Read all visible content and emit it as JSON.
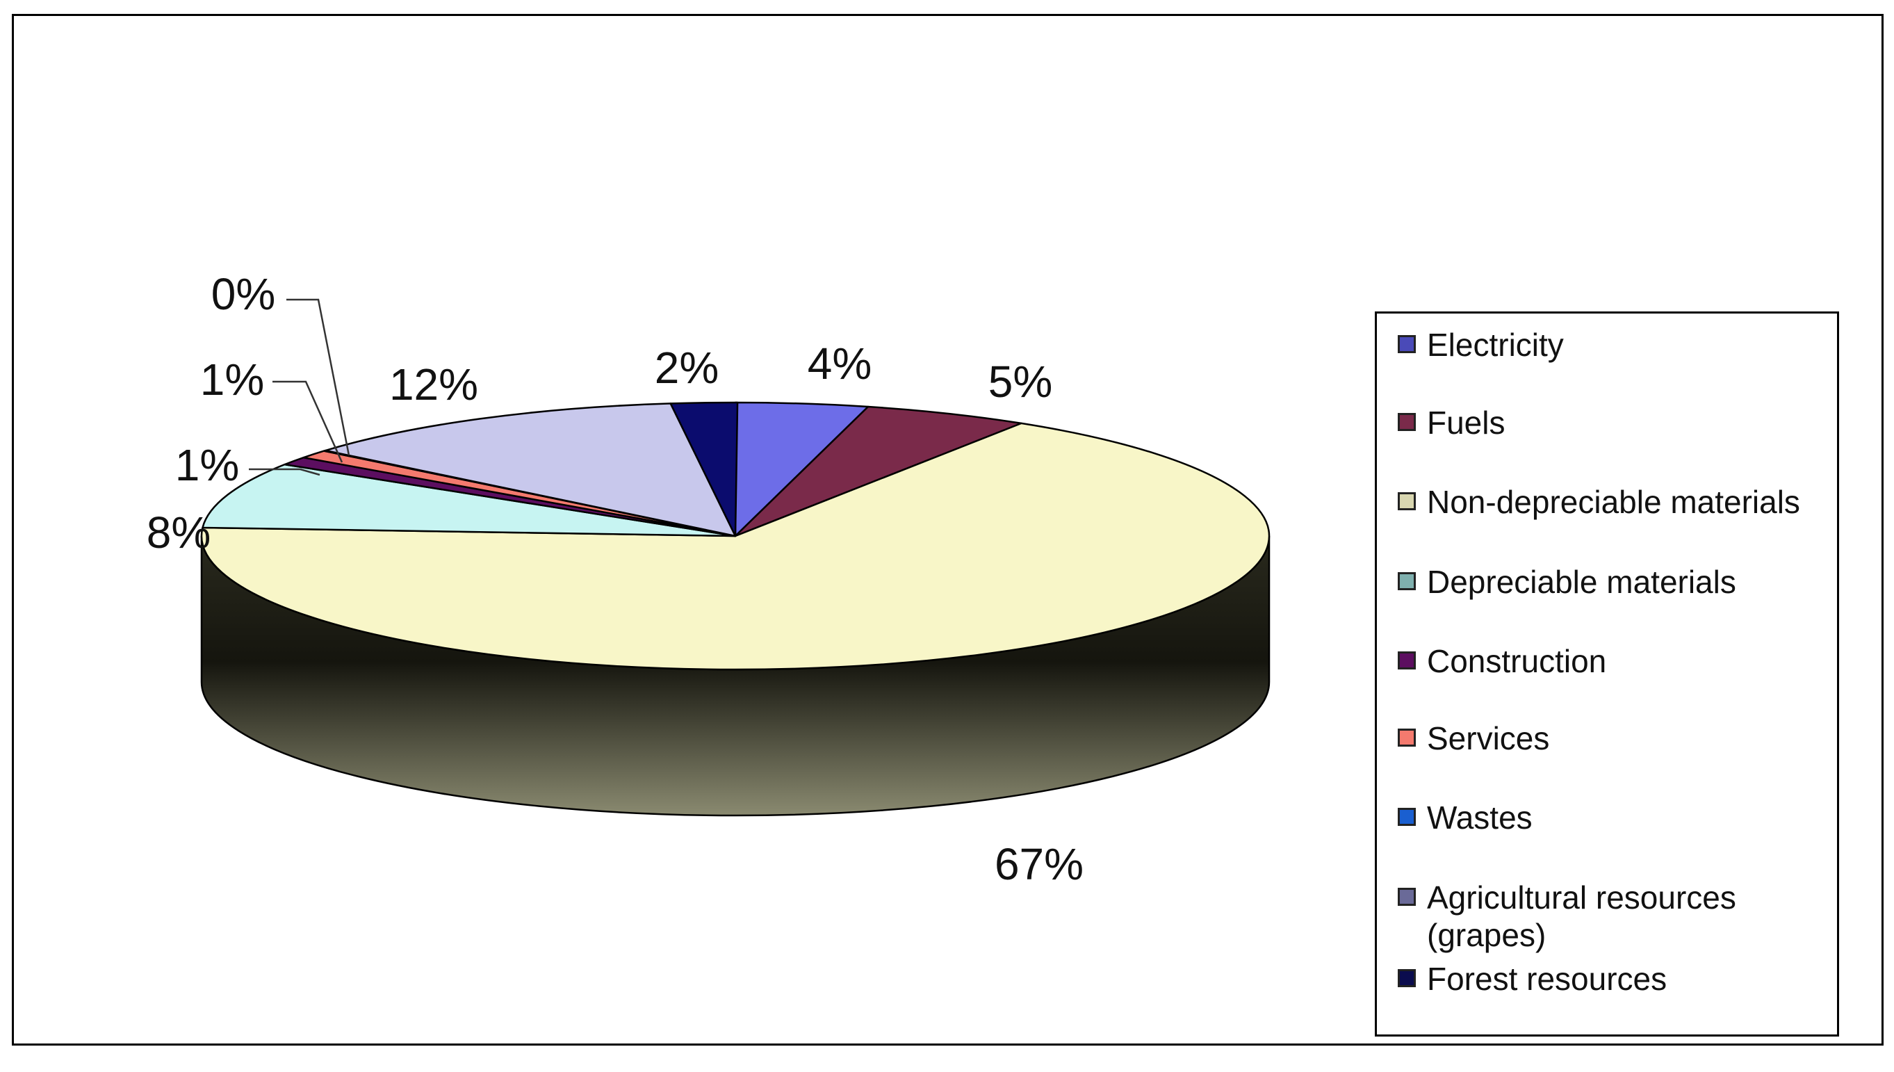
{
  "chart_data": {
    "type": "pie",
    "three_d": true,
    "title": "",
    "legend_position": "right",
    "slices": [
      {
        "name": "Electricity",
        "value": 4,
        "label": "4%",
        "color": "#6d6de8"
      },
      {
        "name": "Fuels",
        "value": 5,
        "label": "5%",
        "color": "#7a2a4a"
      },
      {
        "name": "Non-depreciable materials",
        "value": 67,
        "label": "67%",
        "color": "#f8f6c8"
      },
      {
        "name": "Depreciable materials",
        "value": 8,
        "label": "8%",
        "color": "#c7f4f2"
      },
      {
        "name": "Construction",
        "value": 1,
        "label": "1%",
        "color": "#5c0e60"
      },
      {
        "name": "Services",
        "value": 1,
        "label": "1%",
        "color": "#f47a6e"
      },
      {
        "name": "Wastes",
        "value": 0,
        "label": "0%",
        "color": "#1a5fd0"
      },
      {
        "name": "Agricultural resources (grapes)",
        "value": 12,
        "label": "12%",
        "color": "#c8c8ec"
      },
      {
        "name": "Forest resources",
        "value": 2,
        "label": "2%",
        "color": "#0b0c6e"
      }
    ]
  },
  "legend": {
    "items": [
      {
        "label": "Electricity",
        "color": "#4a4ab8"
      },
      {
        "label": "Fuels",
        "color": "#7a2a4a"
      },
      {
        "label": "Non-depreciable materials",
        "color": "#d8d6b0"
      },
      {
        "label": "Depreciable materials",
        "color": "#7fb0ae"
      },
      {
        "label": "Construction",
        "color": "#5c0e60"
      },
      {
        "label": "Services",
        "color": "#f47a6e"
      },
      {
        "label": "Wastes",
        "color": "#1a5fd0"
      },
      {
        "label": "Agricultural resources (grapes)",
        "color": "#6a6a98"
      },
      {
        "label": "Forest resources",
        "color": "#0b0c4e"
      }
    ]
  }
}
